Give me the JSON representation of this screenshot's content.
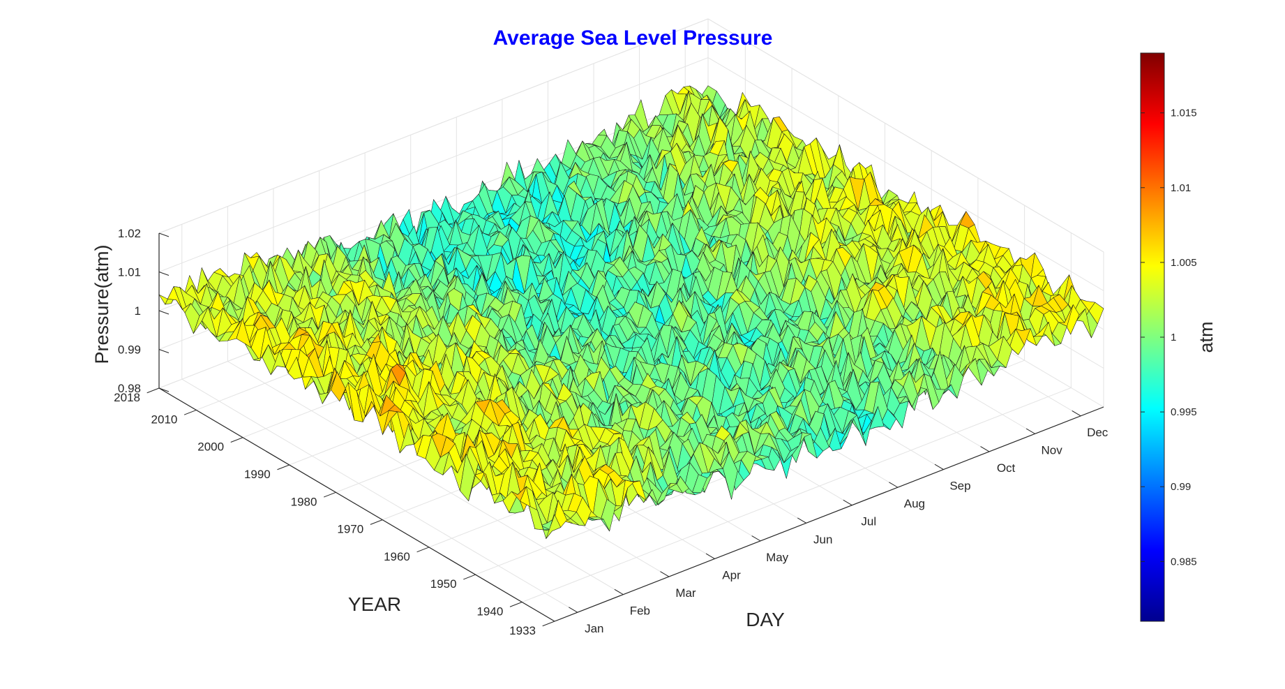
{
  "chart_data": {
    "type": "surface",
    "title": "Average Sea Level Pressure",
    "title_color": "#0000ff",
    "xlabel": "DAY",
    "ylabel": "YEAR",
    "zlabel": "Pressure(atm)",
    "colorbar_label": "atm",
    "colormap": "jet",
    "x_ticks": [
      "Jan",
      "Feb",
      "Mar",
      "Apr",
      "May",
      "Jun",
      "Jul",
      "Aug",
      "Sep",
      "Oct",
      "Nov",
      "Dec"
    ],
    "y_ticks": [
      "1933",
      "1940",
      "1950",
      "1960",
      "1970",
      "1980",
      "1990",
      "2000",
      "2010",
      "2018"
    ],
    "y_tick_values": [
      1933,
      1940,
      1950,
      1960,
      1970,
      1980,
      1990,
      2000,
      2010,
      2018
    ],
    "z_ticks": [
      "0.98",
      "0.99",
      "1",
      "1.01",
      "1.02"
    ],
    "z_tick_values": [
      0.98,
      0.99,
      1,
      1.01,
      1.02
    ],
    "zlim": [
      0.98,
      1.02
    ],
    "ylim": [
      1933,
      2018
    ],
    "clim": [
      0.981,
      1.019
    ],
    "colorbar_ticks": [
      "1.015",
      "1.01",
      "1.005",
      "1",
      "0.995",
      "0.99",
      "0.985"
    ],
    "colorbar_tick_values": [
      1.015,
      1.01,
      1.005,
      1,
      0.995,
      0.99,
      0.985
    ],
    "grid": true,
    "legend": "colorbar-right"
  }
}
